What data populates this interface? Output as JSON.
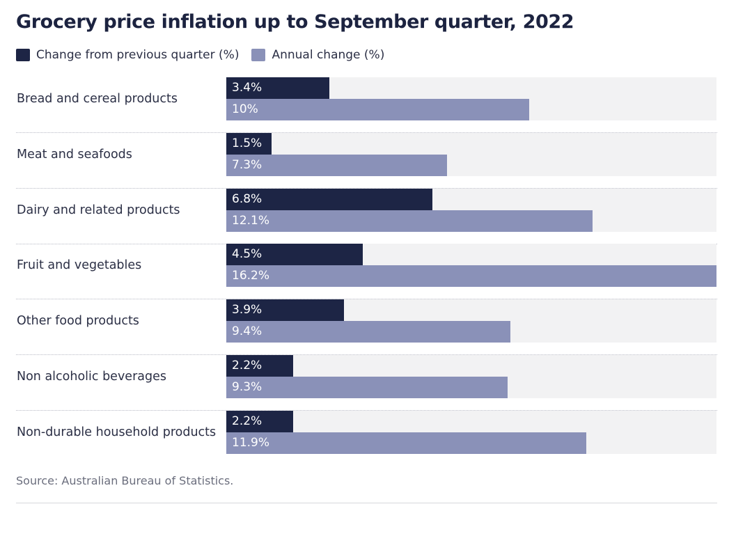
{
  "colors": {
    "quarter": "#1d2545",
    "annual": "#8a91b8",
    "track": "#f2f2f3"
  },
  "chart_data": {
    "type": "bar",
    "orientation": "horizontal",
    "title": "Grocery price inflation up to September quarter, 2022",
    "categories": [
      "Bread and cereal products",
      "Meat and seafoods",
      "Dairy and related products",
      "Fruit and vegetables",
      "Other food products",
      "Non alcoholic beverages",
      "Non-durable household products"
    ],
    "series": [
      {
        "name": "Change from previous quarter (%)",
        "values": [
          3.4,
          1.5,
          6.8,
          4.5,
          3.9,
          2.2,
          2.2
        ],
        "labels": [
          "3.4%",
          "1.5%",
          "6.8%",
          "4.5%",
          "3.9%",
          "2.2%",
          "2.2%"
        ]
      },
      {
        "name": "Annual change (%)",
        "values": [
          10,
          7.3,
          12.1,
          16.2,
          9.4,
          9.3,
          11.9
        ],
        "labels": [
          "10%",
          "7.3%",
          "12.1%",
          "16.2%",
          "9.4%",
          "9.3%",
          "11.9%"
        ]
      }
    ],
    "xlim": [
      0,
      16.2
    ],
    "legend": "top-left",
    "xlabel": "",
    "ylabel": "",
    "source": "Source: Australian Bureau of Statistics."
  }
}
